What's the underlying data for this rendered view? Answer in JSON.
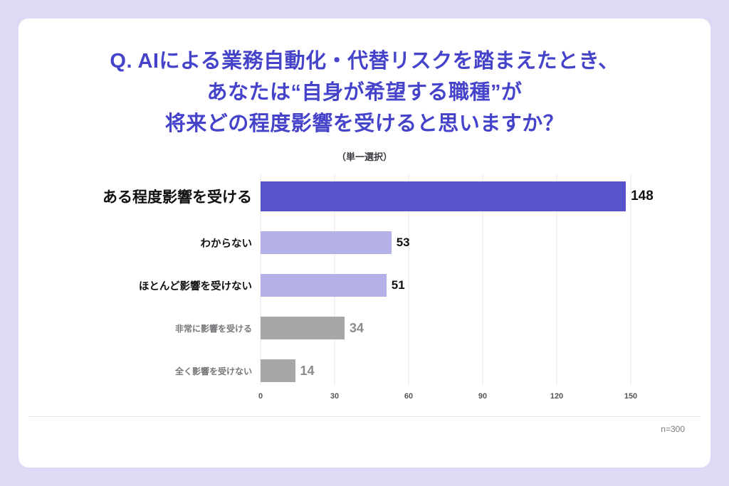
{
  "page": {
    "background_color": "#dddaf5",
    "card_color": "#ffffff"
  },
  "title": {
    "lines": [
      "Q. AIによる業務自動化・代替リスクを踏まえたとき、",
      "あなたは“自身が希望する職種”が",
      "将来どの程度影響を受けると思いますか？"
    ],
    "color": "#4643cb"
  },
  "subtitle": "（単一選択）",
  "footer": {
    "sample_size": "n=300"
  },
  "chart_data": {
    "type": "bar",
    "orientation": "horizontal",
    "title": "AIによる業務自動化・代替リスクを踏まえたとき、あなたは“自身が希望する職種”が将来どの程度影響を受けると思いますか？（単一選択）",
    "categories": [
      "ある程度影響を受ける",
      "わからない",
      "ほとんど影響を受けない",
      "非常に影響を受ける",
      "全く影響を受けない"
    ],
    "values": [
      148,
      53,
      51,
      34,
      14
    ],
    "emphasis": [
      "primary",
      "secondary",
      "secondary",
      "muted",
      "muted"
    ],
    "xlim": [
      0,
      150
    ],
    "xticks": [
      0,
      30,
      60,
      90,
      120,
      150
    ],
    "grid": true,
    "legend": "none",
    "colors": {
      "primary_bar": "#5753cd",
      "secondary_bar": "#b3b1e7",
      "muted_bar": "#a7a7aa",
      "value_dark": "#111111",
      "value_muted": "#8b8b8f",
      "label_dark": "#111111",
      "label_muted": "#77777b"
    }
  }
}
